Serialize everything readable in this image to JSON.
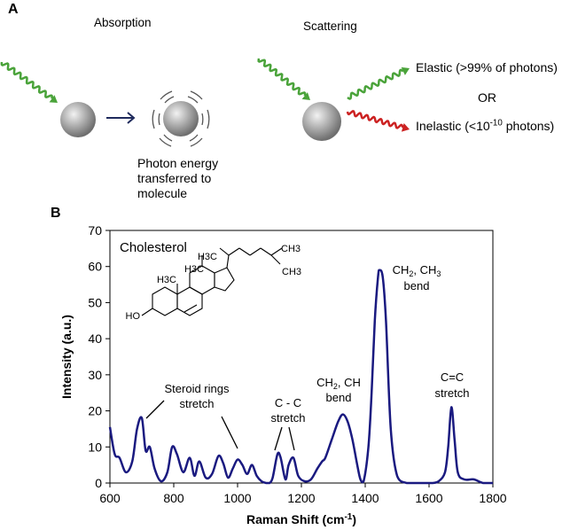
{
  "panel_a": {
    "label": "A",
    "absorption_title": "Absorption",
    "scattering_title": "Scattering",
    "photon_energy_note": [
      "Photon energy",
      "transferred to",
      "molecule"
    ],
    "elastic_label": "Elastic (>99% of photons)",
    "or_label": "OR",
    "inelastic_prefix": "Inelastic (<10",
    "inelastic_exp": "-10",
    "inelastic_suffix": " photons)",
    "colors": {
      "incident": "#4aa33a",
      "elastic": "#4aa33a",
      "inelastic": "#cc2222",
      "arrow": "#1f2a5c"
    }
  },
  "panel_b": {
    "label": "B",
    "molecule_name": "Cholesterol",
    "structure_labels": {
      "h3c_a": "H3C",
      "h3c_b": "H3C",
      "h3c_c": "H3C",
      "ch3": "CH3",
      "ch3_b": "CH3",
      "ho": "HO"
    }
  },
  "chart_data": {
    "type": "line",
    "xlabel": "Raman Shift (cm",
    "xlabel_sup": "-1",
    "xlabel_end": ")",
    "ylabel": "Intensity (a.u.)",
    "xlim": [
      600,
      1800
    ],
    "ylim": [
      0,
      70
    ],
    "xticks": [
      "600",
      "800",
      "1000",
      "1200",
      "1400",
      "1600",
      "1800"
    ],
    "yticks": [
      "0",
      "10",
      "20",
      "30",
      "40",
      "50",
      "60",
      "70"
    ],
    "line_color": "#1a1a80",
    "x": [
      600,
      615,
      630,
      650,
      670,
      685,
      700,
      712,
      725,
      740,
      760,
      780,
      795,
      810,
      830,
      850,
      865,
      880,
      900,
      920,
      940,
      955,
      970,
      985,
      1000,
      1015,
      1030,
      1045,
      1060,
      1075,
      1090,
      1100,
      1110,
      1125,
      1135,
      1150,
      1160,
      1175,
      1190,
      1210,
      1230,
      1250,
      1265,
      1275,
      1295,
      1315,
      1330,
      1345,
      1360,
      1375,
      1385,
      1395,
      1410,
      1420,
      1430,
      1440,
      1445,
      1455,
      1465,
      1480,
      1500,
      1530,
      1560,
      1590,
      1610,
      1630,
      1650,
      1660,
      1670,
      1680,
      1690,
      1710,
      1740,
      1770,
      1800
    ],
    "y": [
      15.5,
      8,
      7,
      3,
      6,
      15,
      18,
      9,
      10,
      4,
      0.5,
      3,
      10,
      8,
      3,
      7,
      2,
      6,
      1.5,
      2.5,
      7.5,
      5.5,
      1.5,
      4,
      6.5,
      5,
      2.5,
      5,
      2,
      0.5,
      0,
      0,
      1.5,
      8,
      7,
      1,
      5,
      7,
      2,
      0.5,
      1,
      4,
      6,
      7,
      12,
      17,
      19,
      17,
      12,
      5,
      1,
      0.5,
      10,
      25,
      45,
      57,
      59,
      57,
      45,
      15,
      2,
      0,
      0,
      0,
      0,
      0.5,
      3,
      10,
      21,
      12,
      3,
      1,
      1,
      0,
      0
    ],
    "annotations": [
      {
        "lines": [
          "Steroid rings",
          "stretch"
        ]
      },
      {
        "lines": [
          "C - C",
          "stretch"
        ]
      },
      {
        "lines": [
          "CH2, CH",
          "bend"
        ],
        "sub": [
          "2",
          ""
        ]
      },
      {
        "lines": [
          "CH2, CH3",
          "bend"
        ]
      },
      {
        "lines": [
          "C=C",
          "stretch"
        ]
      }
    ]
  }
}
